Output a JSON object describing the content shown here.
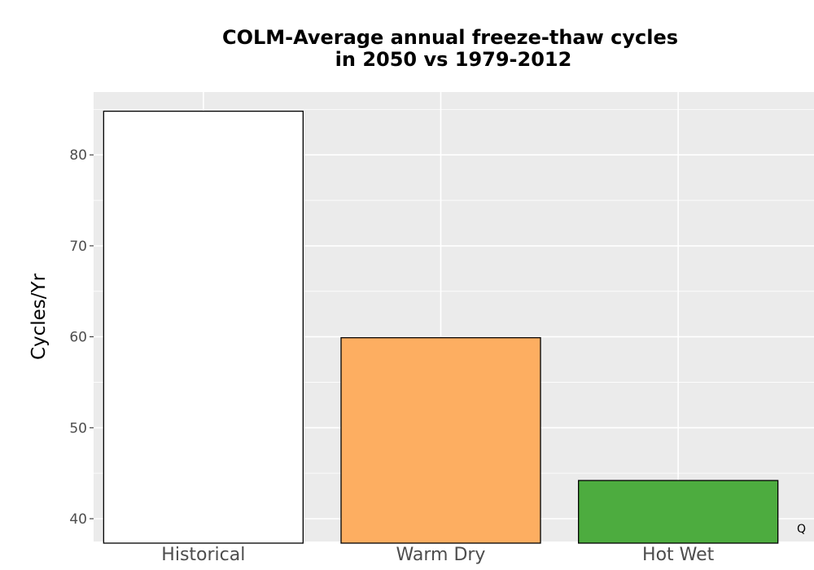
{
  "chart_data": {
    "type": "bar",
    "title_line1": "COLM-Average annual freeze-thaw cycles",
    "title_line2": "in 2050 vs 1979-2012",
    "xlabel": "",
    "ylabel": "Cycles/Yr",
    "categories": [
      "Historical",
      "Warm Dry",
      "Hot Wet"
    ],
    "values": [
      84.8,
      59.9,
      44.2
    ],
    "colors": [
      "#ffffff",
      "#fdae61",
      "#4dac3f"
    ],
    "ylim": [
      37.5,
      87.0
    ],
    "yticks": [
      40,
      50,
      60,
      70,
      80
    ],
    "grid": true,
    "panel_background": "#ebebeb",
    "corner_note": "Q"
  }
}
